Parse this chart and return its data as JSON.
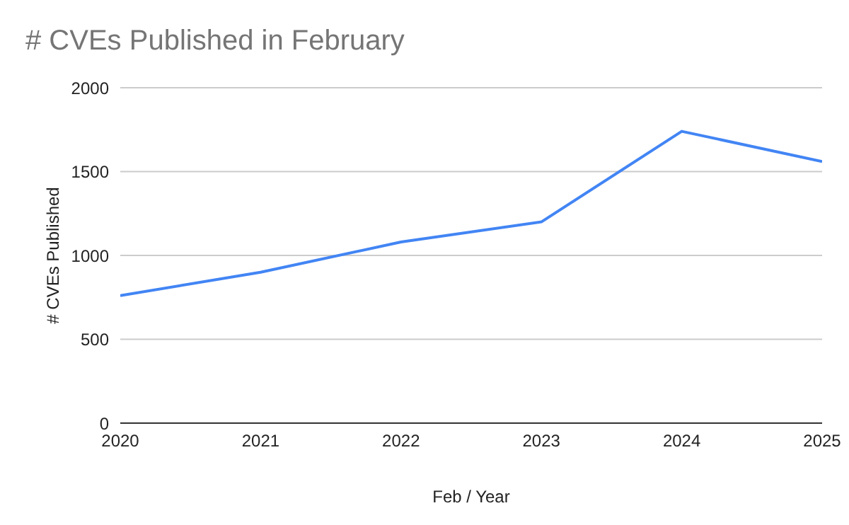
{
  "chart_data": {
    "type": "line",
    "title": "# CVEs Published in February",
    "xlabel": "Feb / Year",
    "ylabel": "# CVEs Published",
    "x": [
      2020,
      2021,
      2022,
      2023,
      2024,
      2025
    ],
    "series": [
      {
        "color": "#4285f4",
        "values": [
          760,
          900,
          1080,
          1200,
          1740,
          1560
        ]
      }
    ],
    "xlim": [
      2020,
      2025
    ],
    "xticks": [
      2020,
      2021,
      2022,
      2023,
      2024,
      2025
    ],
    "ylim": [
      0,
      2000
    ],
    "yticks": [
      0,
      500,
      1000,
      1500,
      2000
    ],
    "grid": "y",
    "legend": false,
    "marker": "none",
    "line_style": "solid"
  }
}
